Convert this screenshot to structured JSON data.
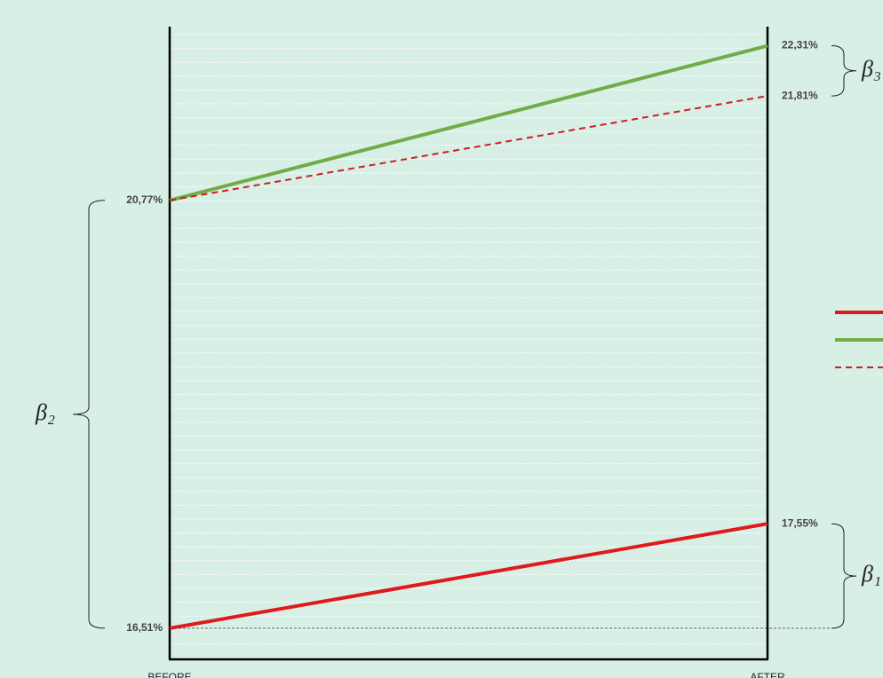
{
  "chart_data": {
    "type": "line",
    "categories": [
      "BEFORE",
      "AFTER"
    ],
    "series": [
      {
        "color": "#e0191c",
        "style": "solid",
        "values": [
          16.51,
          17.55
        ],
        "value_labels": [
          "16,51%",
          "17,55%"
        ]
      },
      {
        "color": "#70ad47",
        "style": "solid",
        "values": [
          20.77,
          22.31
        ],
        "value_labels": [
          "20,77%",
          "22,31%"
        ]
      },
      {
        "color": "#cc1f1f",
        "style": "dashed",
        "values": [
          20.77,
          21.81
        ],
        "value_labels": [
          null,
          "21,81%"
        ]
      }
    ],
    "annotations": [
      "β₂",
      "β₃",
      "β₁"
    ],
    "ylim": [
      16.2,
      22.5
    ],
    "grid": true,
    "legend": "right"
  }
}
